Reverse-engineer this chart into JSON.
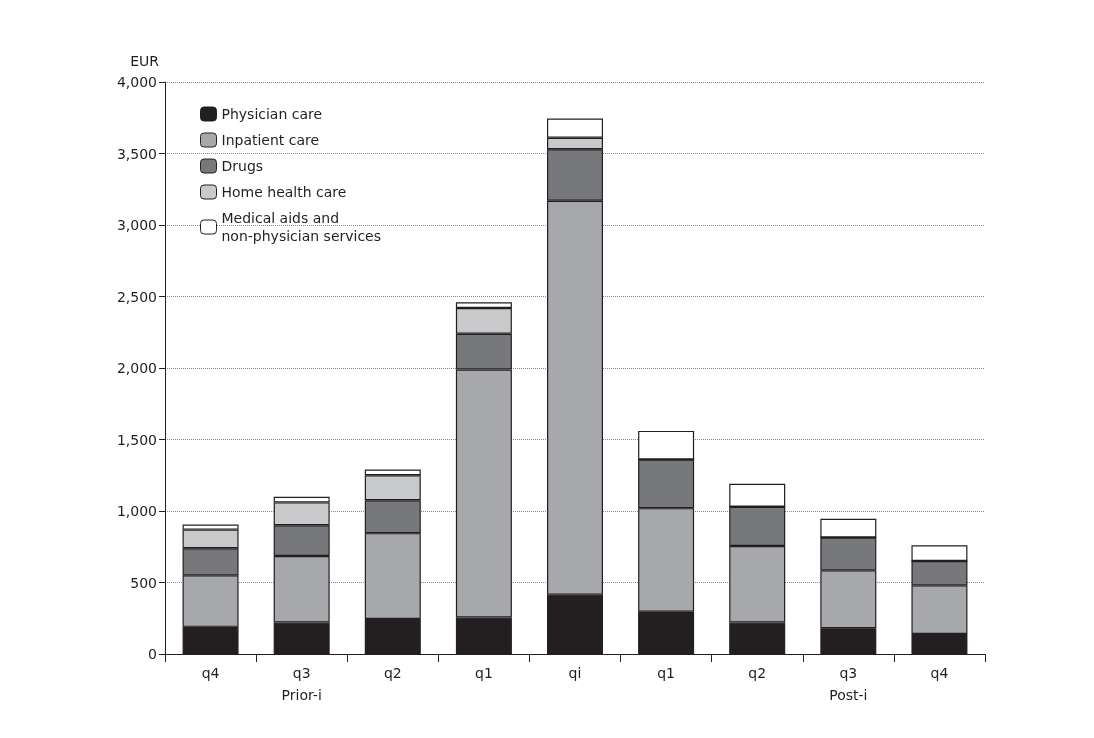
{
  "chart_data": {
    "type": "bar",
    "stacked": true,
    "ylabel": "EUR",
    "categories": [
      "q4",
      "q3",
      "q2",
      "q1",
      "qi",
      "q1",
      "q2",
      "q3",
      "q4"
    ],
    "series": [
      {
        "name": "Physician care",
        "color": "#231f20",
        "values": [
          190,
          220,
          245,
          255,
          415,
          295,
          220,
          180,
          140
        ]
      },
      {
        "name": "Inpatient care",
        "color": "#a7a8ab",
        "values": [
          360,
          465,
          600,
          1735,
          2755,
          725,
          535,
          405,
          340
        ]
      },
      {
        "name": "Drugs",
        "color": "#77787b",
        "values": [
          190,
          215,
          230,
          250,
          360,
          340,
          275,
          230,
          170
        ]
      },
      {
        "name": "Home health care",
        "color": "#c8c9cb",
        "values": [
          130,
          160,
          175,
          180,
          80,
          0,
          0,
          0,
          0
        ]
      },
      {
        "name": "Medical aids and non-physician services",
        "color": "#ffffff",
        "values": [
          35,
          40,
          40,
          40,
          135,
          200,
          160,
          130,
          110
        ]
      }
    ],
    "ylim": [
      0,
      4000
    ],
    "yticks": [
      0,
      500,
      {
        "value": 1000,
        "label": "1,000"
      },
      {
        "value": 1500,
        "label": "1,500"
      },
      {
        "value": 2000,
        "label": "2,000"
      },
      {
        "value": 2500,
        "label": "2,500"
      },
      {
        "value": 3000,
        "label": "3,000"
      },
      {
        "value": 3500,
        "label": "3,500"
      },
      {
        "value": 4000,
        "label": "4,000"
      }
    ],
    "grid": "y",
    "legend": "top left",
    "annotations": [
      "Prior-i",
      "Post-i"
    ]
  }
}
